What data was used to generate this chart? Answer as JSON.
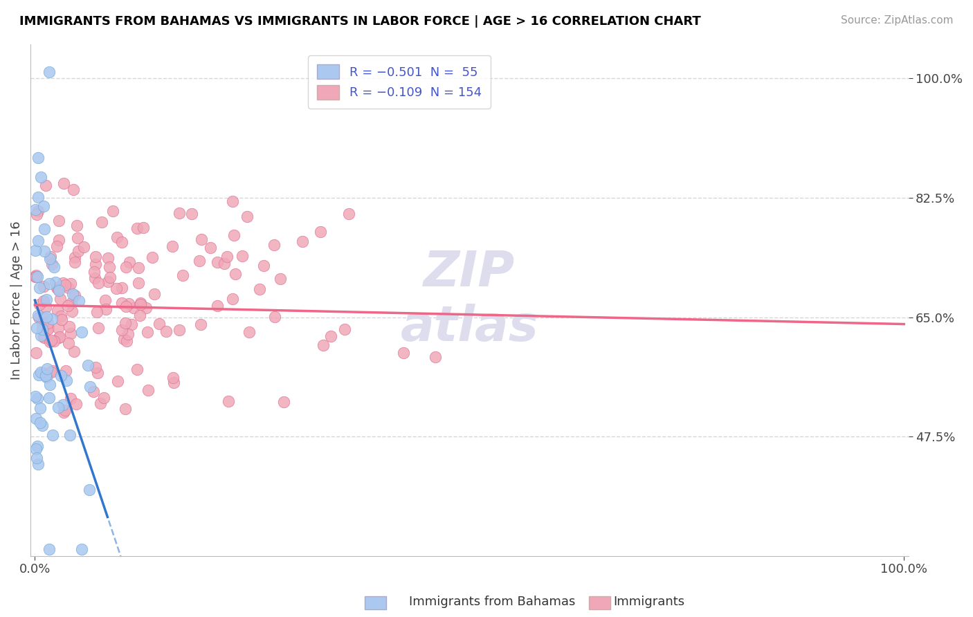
{
  "title": "IMMIGRANTS FROM BAHAMAS VS IMMIGRANTS IN LABOR FORCE | AGE > 16 CORRELATION CHART",
  "source": "Source: ZipAtlas.com",
  "xlabel": "",
  "ylabel": "In Labor Force | Age > 16",
  "xmin": 0.0,
  "xmax": 1.0,
  "ymin": 0.3,
  "ymax": 1.05,
  "yticks": [
    0.475,
    0.65,
    0.825,
    1.0
  ],
  "ytick_labels": [
    "47.5%",
    "65.0%",
    "82.5%",
    "100.0%"
  ],
  "xtick_labels": [
    "0.0%",
    "100.0%"
  ],
  "xticks": [
    0.0,
    1.0
  ],
  "series_blue": {
    "color": "#aac8f0",
    "edge_color": "#7aaad8",
    "R": -0.501,
    "N": 55,
    "slope": -3.8,
    "intercept": 0.675
  },
  "series_pink": {
    "color": "#f0a8b8",
    "edge_color": "#e07898",
    "R": -0.109,
    "N": 154,
    "slope": -0.028,
    "intercept": 0.668
  },
  "background_color": "#ffffff",
  "grid_color": "#cccccc",
  "title_color": "#000000",
  "source_color": "#999999",
  "label_color": "#4455cc",
  "blue_line_color": "#3377cc",
  "pink_line_color": "#ee6688",
  "watermark_color": "#ddddee"
}
